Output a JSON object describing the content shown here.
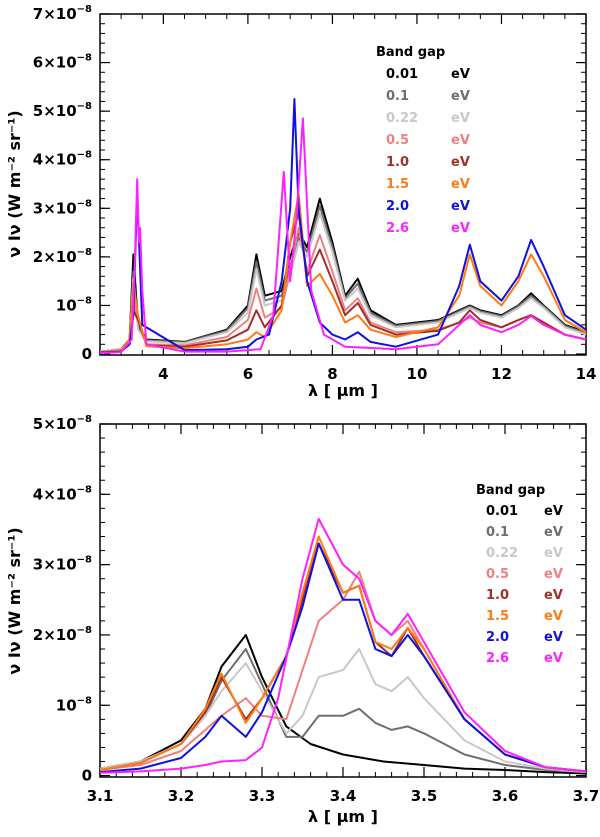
{
  "chart_data": [
    {
      "type": "line",
      "name": "full-spectrum",
      "xlabel": "λ [ μm ]",
      "ylabel": "ν Iν (W m⁻² sr⁻¹)",
      "xlim": [
        2.5,
        14
      ],
      "ylim": [
        -2e-10,
        7e-08
      ],
      "xticks": [
        4,
        6,
        8,
        10,
        12,
        14
      ],
      "xtick_labels": [
        "4",
        "6",
        "8",
        "10",
        "12",
        "14"
      ],
      "yticks": [
        0,
        1e-08,
        2e-08,
        3e-08,
        4e-08,
        5e-08,
        6e-08,
        7e-08
      ],
      "ytick_mantissas": [
        "0",
        "10",
        "2×10",
        "3×10",
        "4×10",
        "5×10",
        "6×10",
        "7×10"
      ],
      "ytick_exponent": "−8",
      "legend_title": "Band gap",
      "legend_unit": "eV",
      "legend_placement": "top-right",
      "series": [
        {
          "name": "0.01",
          "color": "#000000",
          "x": [
            2.5,
            3.0,
            3.2,
            3.29,
            3.4,
            3.6,
            4.5,
            5.5,
            6.0,
            6.2,
            6.4,
            6.8,
            7.0,
            7.2,
            7.4,
            7.7,
            8.0,
            8.3,
            8.6,
            8.9,
            9.5,
            10.5,
            11.0,
            11.25,
            11.5,
            12.0,
            12.4,
            12.7,
            13.0,
            13.5,
            14.0
          ],
          "y": [
            5e-10,
            1e-09,
            3e-09,
            2.05e-08,
            6e-09,
            3e-09,
            2.5e-09,
            5e-09,
            1e-08,
            2.05e-08,
            1.2e-08,
            1.3e-08,
            2e-08,
            2.5e-08,
            2.2e-08,
            3.2e-08,
            2.3e-08,
            1.2e-08,
            1.55e-08,
            9e-09,
            6e-09,
            7e-09,
            9e-09,
            1e-08,
            9e-09,
            8e-09,
            1e-08,
            1.25e-08,
            1e-08,
            6e-09,
            4.5e-09
          ]
        },
        {
          "name": "0.1",
          "color": "#6e6e6e",
          "x": [
            2.5,
            3.0,
            3.2,
            3.29,
            3.4,
            3.6,
            4.5,
            5.5,
            6.0,
            6.2,
            6.4,
            6.8,
            7.0,
            7.2,
            7.4,
            7.7,
            8.0,
            8.3,
            8.6,
            8.9,
            9.5,
            10.5,
            11.0,
            11.25,
            11.5,
            12.0,
            12.4,
            12.7,
            13.0,
            13.5,
            14.0
          ],
          "y": [
            5e-10,
            1e-09,
            2.8e-09,
            1.7e-08,
            5.5e-09,
            2.8e-09,
            2.4e-09,
            4.8e-09,
            9.5e-09,
            1.9e-08,
            1.1e-08,
            1.2e-08,
            1.8e-08,
            2.4e-08,
            2.1e-08,
            3.05e-08,
            2.2e-08,
            1.15e-08,
            1.45e-08,
            8.5e-09,
            5.8e-09,
            6.8e-09,
            8.8e-09,
            9.8e-09,
            8.8e-09,
            7.8e-09,
            9.8e-09,
            1.2e-08,
            9.8e-09,
            5.8e-09,
            4.3e-09
          ]
        },
        {
          "name": "0.22",
          "color": "#c8c8c8",
          "x": [
            2.5,
            3.0,
            3.2,
            3.29,
            3.4,
            3.6,
            4.5,
            5.5,
            6.0,
            6.2,
            6.4,
            6.8,
            7.0,
            7.2,
            7.4,
            7.7,
            8.0,
            8.3,
            8.6,
            8.9,
            9.5,
            10.5,
            11.0,
            11.25,
            11.5,
            12.0,
            12.4,
            12.7,
            13.0,
            13.5,
            14.0
          ],
          "y": [
            5e-10,
            1e-09,
            2.6e-09,
            1.55e-08,
            5e-09,
            2.6e-09,
            2.2e-09,
            4.5e-09,
            8.5e-09,
            1.75e-08,
            1e-08,
            1.1e-08,
            1.6e-08,
            2.3e-08,
            2e-08,
            2.9e-08,
            2.1e-08,
            1.1e-08,
            1.35e-08,
            8e-09,
            5.5e-09,
            6.5e-09,
            8.5e-09,
            9.5e-09,
            8.5e-09,
            7.5e-09,
            9.5e-09,
            1.15e-08,
            9.5e-09,
            5.5e-09,
            4e-09
          ]
        },
        {
          "name": "0.5",
          "color": "#f08080",
          "x": [
            2.5,
            3.0,
            3.2,
            3.29,
            3.4,
            3.6,
            4.5,
            5.5,
            6.0,
            6.2,
            6.4,
            6.8,
            7.0,
            7.2,
            7.4,
            7.7,
            8.0,
            8.3,
            8.6,
            8.9,
            9.5,
            10.5,
            11.0,
            11.25,
            11.5,
            12.0,
            12.4,
            12.7,
            13.0,
            13.5,
            14.0
          ],
          "y": [
            4e-10,
            8e-10,
            2.5e-09,
            1.1e-08,
            7e-09,
            2e-09,
            1.8e-09,
            3.5e-09,
            7e-09,
            1.35e-08,
            7.5e-09,
            9.5e-09,
            1.7e-08,
            2.6e-08,
            1.7e-08,
            2.45e-08,
            1.7e-08,
            9e-09,
            1.15e-08,
            6.5e-09,
            4.5e-09,
            5e-09,
            6.5e-09,
            7.5e-09,
            6.5e-09,
            5.5e-09,
            7e-09,
            8e-09,
            6.5e-09,
            4e-09,
            3e-09
          ]
        },
        {
          "name": "1.0",
          "color": "#a0302a",
          "x": [
            2.5,
            3.0,
            3.2,
            3.29,
            3.4,
            3.6,
            4.5,
            5.5,
            6.0,
            6.2,
            6.4,
            6.8,
            7.0,
            7.2,
            7.4,
            7.7,
            8.0,
            8.3,
            8.6,
            8.9,
            9.5,
            10.5,
            11.0,
            11.25,
            11.5,
            12.0,
            12.4,
            12.7,
            13.0,
            13.5,
            14.0
          ],
          "y": [
            4e-10,
            8e-10,
            2.2e-09,
            9e-09,
            7e-09,
            1.8e-09,
            1.5e-09,
            2.8e-09,
            5e-09,
            9e-09,
            5.5e-09,
            1e-08,
            2.3e-08,
            2.9e-08,
            1.6e-08,
            2.15e-08,
            1.5e-08,
            8e-09,
            1.05e-08,
            6e-09,
            4e-09,
            4.8e-09,
            6.5e-09,
            9e-09,
            7e-09,
            5.5e-09,
            7e-09,
            8e-09,
            6.5e-09,
            4e-09,
            3e-09
          ]
        },
        {
          "name": "1.5",
          "color": "#ff7a10",
          "x": [
            2.5,
            3.0,
            3.2,
            3.29,
            3.4,
            3.6,
            4.5,
            5.5,
            6.0,
            6.2,
            6.4,
            6.8,
            7.0,
            7.2,
            7.4,
            7.7,
            8.0,
            8.3,
            8.6,
            8.9,
            9.5,
            10.5,
            11.0,
            11.25,
            11.5,
            12.0,
            12.4,
            12.7,
            13.0,
            13.5,
            14.0
          ],
          "y": [
            4e-10,
            8e-10,
            3e-09,
            1.45e-08,
            8e-09,
            1.6e-09,
            1.2e-09,
            2e-09,
            3e-09,
            4.5e-09,
            3.5e-09,
            9e-09,
            2.3e-08,
            3.3e-08,
            1.4e-08,
            1.65e-08,
            1.2e-08,
            6.5e-09,
            8e-09,
            5e-09,
            3.5e-09,
            5.5e-09,
            1.2e-08,
            2.05e-08,
            1.4e-08,
            1e-08,
            1.5e-08,
            2.05e-08,
            1.6e-08,
            7e-09,
            4.5e-09
          ]
        },
        {
          "name": "2.0",
          "color": "#1010e0",
          "x": [
            2.5,
            3.0,
            3.2,
            3.29,
            3.38,
            3.5,
            4.5,
            5.5,
            6.0,
            6.2,
            6.5,
            6.8,
            7.0,
            7.1,
            7.2,
            7.4,
            7.7,
            8.0,
            8.3,
            8.6,
            8.9,
            9.5,
            10.5,
            11.0,
            11.25,
            11.5,
            12.0,
            12.4,
            12.7,
            13.0,
            13.5,
            14.0
          ],
          "y": [
            3e-10,
            5e-10,
            2e-09,
            8e-09,
            3.3e-08,
            6e-09,
            8e-10,
            1e-09,
            1.5e-09,
            3e-09,
            4e-09,
            1.5e-08,
            3e-08,
            5.25e-08,
            3e-08,
            1.5e-08,
            6.5e-09,
            4e-09,
            3e-09,
            4.5e-09,
            2.5e-09,
            1.5e-09,
            4e-09,
            1.4e-08,
            2.25e-08,
            1.5e-08,
            1.1e-08,
            1.6e-08,
            2.35e-08,
            1.8e-08,
            8e-09,
            5e-09
          ]
        },
        {
          "name": "2.6",
          "color": "#ff20ff",
          "x": [
            2.5,
            3.0,
            3.25,
            3.32,
            3.38,
            3.42,
            3.45,
            3.5,
            3.6,
            4.5,
            5.5,
            6.3,
            6.6,
            6.85,
            7.0,
            7.15,
            7.3,
            7.5,
            7.8,
            8.3,
            9.5,
            10.5,
            11.0,
            11.25,
            11.5,
            12.0,
            12.4,
            12.7,
            13.0,
            13.5,
            14.0
          ],
          "y": [
            2e-10,
            4e-10,
            3e-09,
            1.8e-08,
            3.6e-08,
            2.3e-08,
            2.6e-08,
            1.3e-08,
            2e-09,
            5e-10,
            5e-10,
            1e-09,
            8e-09,
            3.75e-08,
            1.5e-08,
            2.8e-08,
            4.85e-08,
            1.3e-08,
            4e-09,
            1.5e-09,
            1e-09,
            2e-09,
            6e-09,
            8e-09,
            6e-09,
            4.5e-09,
            6e-09,
            7.8e-09,
            6e-09,
            4e-09,
            3e-09
          ]
        }
      ]
    },
    {
      "type": "line",
      "name": "zoom-3um",
      "xlabel": "λ [ μm ]",
      "ylabel": "ν Iν (W m⁻² sr⁻¹)",
      "xlim": [
        3.1,
        3.7
      ],
      "ylim": [
        -2e-10,
        5e-08
      ],
      "xticks": [
        3.1,
        3.2,
        3.3,
        3.4,
        3.5,
        3.6,
        3.7
      ],
      "xtick_labels": [
        "3.1",
        "3.2",
        "3.3",
        "3.4",
        "3.5",
        "3.6",
        "3.7"
      ],
      "yticks": [
        0,
        1e-08,
        2e-08,
        3e-08,
        4e-08,
        5e-08
      ],
      "ytick_mantissas": [
        "0",
        "10",
        "2×10",
        "3×10",
        "4×10",
        "5×10"
      ],
      "ytick_exponent": "−8",
      "legend_title": "Band gap",
      "legend_unit": "eV",
      "legend_placement": "right",
      "series": [
        {
          "name": "0.01",
          "color": "#000000",
          "x": [
            3.1,
            3.15,
            3.2,
            3.23,
            3.25,
            3.28,
            3.3,
            3.33,
            3.36,
            3.4,
            3.45,
            3.5,
            3.55,
            3.6,
            3.65,
            3.7
          ],
          "y": [
            1e-09,
            2e-09,
            5e-09,
            9.5e-09,
            1.55e-08,
            2e-08,
            1.4e-08,
            7e-09,
            4.5e-09,
            3e-09,
            2e-09,
            1.5e-09,
            1e-09,
            8e-10,
            5e-10,
            3e-10
          ]
        },
        {
          "name": "0.1",
          "color": "#6e6e6e",
          "x": [
            3.1,
            3.15,
            3.2,
            3.23,
            3.25,
            3.28,
            3.3,
            3.33,
            3.35,
            3.37,
            3.4,
            3.42,
            3.44,
            3.46,
            3.48,
            3.5,
            3.55,
            3.6,
            3.65,
            3.7
          ],
          "y": [
            1e-09,
            2e-09,
            4.5e-09,
            8.5e-09,
            1.35e-08,
            1.8e-08,
            1.3e-08,
            5.5e-09,
            5.5e-09,
            8.5e-09,
            8.5e-09,
            9.5e-09,
            7.5e-09,
            6.5e-09,
            7e-09,
            6e-09,
            3e-09,
            1.5e-09,
            8e-10,
            5e-10
          ]
        },
        {
          "name": "0.22",
          "color": "#c8c8c8",
          "x": [
            3.1,
            3.15,
            3.2,
            3.23,
            3.25,
            3.28,
            3.3,
            3.33,
            3.35,
            3.37,
            3.4,
            3.42,
            3.44,
            3.46,
            3.48,
            3.5,
            3.55,
            3.6,
            3.65,
            3.7
          ],
          "y": [
            1e-09,
            2e-09,
            4.5e-09,
            8.5e-09,
            1.2e-08,
            1.6e-08,
            1.2e-08,
            6e-09,
            8.5e-09,
            1.4e-08,
            1.5e-08,
            1.8e-08,
            1.3e-08,
            1.2e-08,
            1.4e-08,
            1.1e-08,
            5e-09,
            2e-09,
            1e-09,
            5e-10
          ]
        },
        {
          "name": "0.5",
          "color": "#f08080",
          "x": [
            3.1,
            3.15,
            3.2,
            3.23,
            3.25,
            3.28,
            3.3,
            3.33,
            3.35,
            3.37,
            3.4,
            3.42,
            3.44,
            3.46,
            3.48,
            3.5,
            3.55,
            3.6,
            3.65,
            3.7
          ],
          "y": [
            8e-10,
            1.5e-09,
            3.5e-09,
            6.5e-09,
            8.5e-09,
            1.1e-08,
            8.5e-09,
            8e-09,
            1.5e-08,
            2.2e-08,
            2.5e-08,
            2.9e-08,
            2.2e-08,
            2e-08,
            2.2e-08,
            1.8e-08,
            8e-09,
            3e-09,
            1.2e-09,
            6e-10
          ]
        },
        {
          "name": "1.0",
          "color": "#a0302a",
          "x": [
            3.1,
            3.15,
            3.2,
            3.23,
            3.25,
            3.28,
            3.3,
            3.33,
            3.35,
            3.37,
            3.4,
            3.42,
            3.44,
            3.46,
            3.48,
            3.5,
            3.55,
            3.6,
            3.65,
            3.7
          ],
          "y": [
            8e-10,
            1.8e-09,
            4.5e-09,
            9e-09,
            1.4e-08,
            8e-09,
            1.1e-08,
            1.7e-08,
            2.5e-08,
            3.3e-08,
            2.6e-08,
            2.7e-08,
            1.9e-08,
            1.7e-08,
            2.1e-08,
            1.7e-08,
            8e-09,
            3e-09,
            1.2e-09,
            6e-10
          ]
        },
        {
          "name": "1.5",
          "color": "#ff7a10",
          "x": [
            3.1,
            3.15,
            3.2,
            3.23,
            3.25,
            3.28,
            3.3,
            3.33,
            3.35,
            3.37,
            3.4,
            3.42,
            3.44,
            3.46,
            3.48,
            3.5,
            3.55,
            3.6,
            3.65,
            3.7
          ],
          "y": [
            8e-10,
            1.8e-09,
            4.5e-09,
            9.5e-09,
            1.45e-08,
            7.5e-09,
            1.1e-08,
            1.7e-08,
            2.6e-08,
            3.4e-08,
            2.6e-08,
            2.7e-08,
            1.9e-08,
            1.8e-08,
            2.1e-08,
            1.8e-08,
            8e-09,
            3e-09,
            1.2e-09,
            6e-10
          ]
        },
        {
          "name": "2.0",
          "color": "#1010e0",
          "x": [
            3.1,
            3.15,
            3.2,
            3.23,
            3.25,
            3.28,
            3.3,
            3.33,
            3.35,
            3.37,
            3.4,
            3.42,
            3.44,
            3.46,
            3.48,
            3.5,
            3.55,
            3.6,
            3.65,
            3.7
          ],
          "y": [
            5e-10,
            1e-09,
            2.5e-09,
            5.5e-09,
            8.5e-09,
            5.5e-09,
            9e-09,
            1.7e-08,
            2.4e-08,
            3.3e-08,
            2.5e-08,
            2.5e-08,
            1.8e-08,
            1.7e-08,
            2e-08,
            1.7e-08,
            8e-09,
            3e-09,
            1.2e-09,
            6e-10
          ]
        },
        {
          "name": "2.6",
          "color": "#ff20ff",
          "x": [
            3.1,
            3.15,
            3.2,
            3.23,
            3.25,
            3.28,
            3.3,
            3.32,
            3.35,
            3.37,
            3.4,
            3.42,
            3.44,
            3.46,
            3.48,
            3.5,
            3.55,
            3.6,
            3.65,
            3.7
          ],
          "y": [
            4e-10,
            6e-10,
            1e-09,
            1.5e-09,
            2e-09,
            2.2e-09,
            4e-09,
            1.1e-08,
            2.8e-08,
            3.65e-08,
            3e-08,
            2.8e-08,
            2.2e-08,
            2e-08,
            2.3e-08,
            1.9e-08,
            9e-09,
            3.5e-09,
            1.2e-09,
            6e-10
          ]
        }
      ]
    }
  ]
}
